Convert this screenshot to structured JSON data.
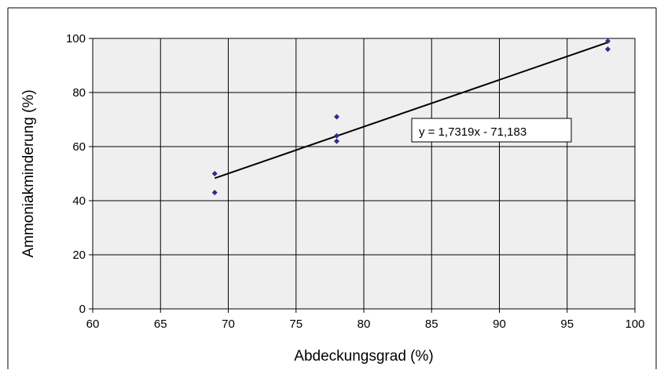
{
  "chart_data": {
    "type": "scatter",
    "xlabel": "Abdeckungsgrad (%)",
    "ylabel": "Ammoniakminderung (%)",
    "xlim": [
      60,
      100
    ],
    "ylim": [
      0,
      100
    ],
    "xticks": [
      60,
      65,
      70,
      75,
      80,
      85,
      90,
      95,
      100
    ],
    "yticks": [
      0,
      20,
      40,
      60,
      80,
      100
    ],
    "xtick_labels": [
      "60",
      "65",
      "70",
      "75",
      "80",
      "85",
      "90",
      "95",
      "100"
    ],
    "ytick_labels": [
      "0",
      "20",
      "40",
      "60",
      "80",
      "100"
    ],
    "grid": true,
    "series": [
      {
        "marker": "diamond",
        "color": "#2e2b8a",
        "points": [
          {
            "x": 69,
            "y": 50
          },
          {
            "x": 69,
            "y": 43
          },
          {
            "x": 78,
            "y": 71
          },
          {
            "x": 78,
            "y": 64
          },
          {
            "x": 78,
            "y": 62
          },
          {
            "x": 98,
            "y": 99
          },
          {
            "x": 98,
            "y": 96
          }
        ]
      }
    ],
    "trendline": {
      "type": "linear",
      "slope": 1.7319,
      "intercept": -71.183,
      "x_range": [
        69,
        98
      ],
      "color": "#000000",
      "equation_label": "y = 1,7319x - 71,183"
    },
    "plot_background": "#efefef",
    "gridline_color": "#000000"
  }
}
